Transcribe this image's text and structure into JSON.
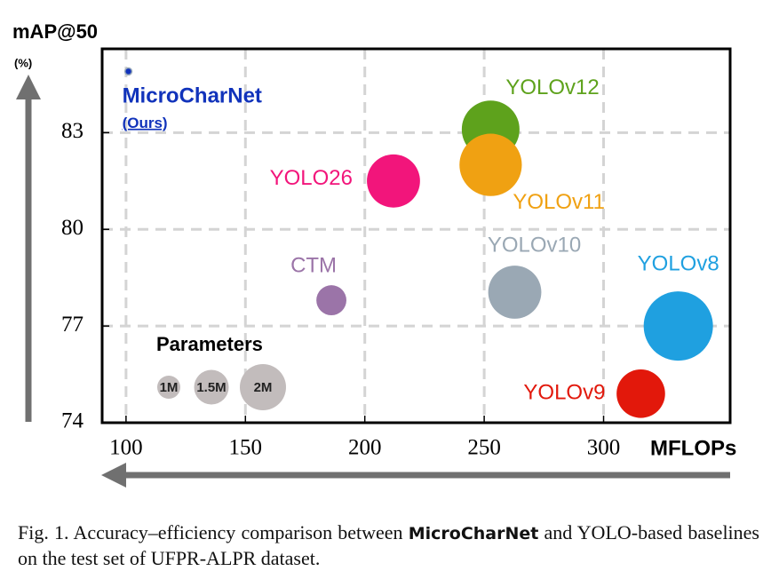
{
  "chart_data": {
    "type": "scatter",
    "y_label": "mAP@50",
    "y_unit": "(%)",
    "x_label": "MFLOPs",
    "xlim": [
      90,
      353
    ],
    "ylim": [
      74,
      85.6
    ],
    "xticks": [
      100,
      150,
      200,
      250,
      300
    ],
    "yticks": [
      74,
      77,
      80,
      83
    ],
    "grid": true,
    "series": [
      {
        "name": "MicroCharNet",
        "sublabel": "(Ours)",
        "color": "#1133bb",
        "x": 101,
        "y": 84.9,
        "size": 0.3
      },
      {
        "name": "YOLOv12",
        "color": "#5ea21c",
        "x": 252.7,
        "y": 83.1,
        "size": 2.5
      },
      {
        "name": "YOLOv11",
        "color": "#f0a112",
        "x": 252.7,
        "y": 82.0,
        "size": 2.7
      },
      {
        "name": "YOLO26",
        "color": "#f2157b",
        "x": 212,
        "y": 81.5,
        "size": 2.3
      },
      {
        "name": "CTM",
        "color": "#9b74a8",
        "x": 186,
        "y": 77.8,
        "size": 1.3
      },
      {
        "name": "YOLOv10",
        "color": "#9aa8b4",
        "x": 262.8,
        "y": 78.05,
        "size": 2.3
      },
      {
        "name": "YOLOv8",
        "color": "#1fa0e0",
        "x": 331.3,
        "y": 77.0,
        "size": 3.0
      },
      {
        "name": "YOLOv9",
        "color": "#e2180b",
        "x": 315.6,
        "y": 74.9,
        "size": 2.1
      }
    ],
    "size_legend": {
      "title": "Parameters",
      "sizes": [
        1,
        1.5,
        2
      ],
      "labels": [
        "1M",
        "1.5M",
        "2M"
      ],
      "color": "#c2bcbc"
    },
    "caption": [
      "Fig. 1.  Accuracy–efficiency comparison between ",
      "MicroCharNet",
      " and YOLO-based baselines on the test set of UFPR-ALPR dataset."
    ]
  }
}
